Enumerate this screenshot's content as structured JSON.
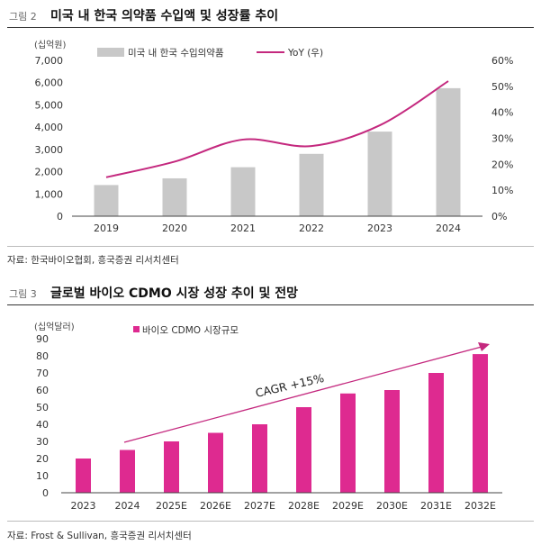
{
  "figure1": {
    "fig_no": "그림 2",
    "title": "미국 내 한국 의약품 수입액 및 성장률 추이",
    "source": "자료: 한국바이오협회, 흥국증권 리서치센터",
    "y_unit": "(십억원)",
    "legend_bar": "미국 내 한국 수입의약품",
    "legend_line": "YoY (우)"
  },
  "figure2": {
    "fig_no": "그림 3",
    "title": "글로벌 바이오 CDMO 시장 성장 추이 및 전망",
    "source": "자료: Frost & Sullivan, 흥국증권 리서치센터",
    "y_unit": "(십억달러)",
    "legend": "바이오 CDMO 시장규모",
    "annotation": "CAGR +15%"
  },
  "colors": {
    "bar_gray": "#c8c8c8",
    "line_magenta": "#c4287e",
    "bar_magenta": "#de2a90"
  },
  "chart_data": [
    {
      "type": "bar",
      "title": "미국 내 한국 의약품 수입액 및 성장률 추이",
      "categories": [
        "2019",
        "2020",
        "2021",
        "2022",
        "2023",
        "2024"
      ],
      "series": [
        {
          "name": "미국 내 한국 수입의약품",
          "type": "bar",
          "axis": "left",
          "values": [
            1400,
            1700,
            2200,
            2800,
            3800,
            5750
          ]
        },
        {
          "name": "YoY (우)",
          "type": "line",
          "axis": "right",
          "values": [
            15,
            21,
            29.5,
            27,
            35,
            52
          ]
        }
      ],
      "ylabel": "(십억원)",
      "ylim": [
        0,
        7000
      ],
      "yticks": [
        "0",
        "1,000",
        "2,000",
        "3,000",
        "4,000",
        "5,000",
        "6,000",
        "7,000"
      ],
      "y2lim": [
        0,
        60
      ],
      "y2ticks": [
        "0%",
        "10%",
        "20%",
        "30%",
        "40%",
        "50%",
        "60%"
      ],
      "legend_position": "top"
    },
    {
      "type": "bar",
      "title": "글로벌 바이오 CDMO 시장 성장 추이 및 전망",
      "categories": [
        "2023",
        "2024",
        "2025E",
        "2026E",
        "2027E",
        "2028E",
        "2029E",
        "2030E",
        "2031E",
        "2032E"
      ],
      "series": [
        {
          "name": "바이오 CDMO 시장규모",
          "values": [
            20,
            25,
            30,
            35,
            40,
            50,
            58,
            60,
            70,
            81
          ]
        }
      ],
      "ylabel": "(십억달러)",
      "ylim": [
        0,
        90
      ],
      "yticks": [
        "0",
        "10",
        "20",
        "30",
        "40",
        "50",
        "60",
        "70",
        "80",
        "90"
      ],
      "annotations": [
        "CAGR +15%"
      ],
      "legend_position": "top-left"
    }
  ]
}
